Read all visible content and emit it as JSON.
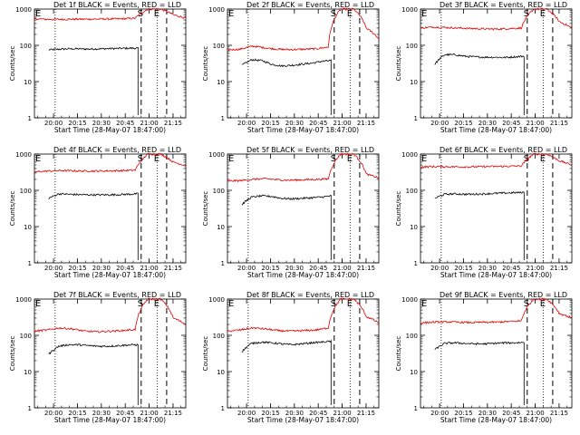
{
  "window": {
    "title": ""
  },
  "colors": {
    "events": "#000000",
    "lld": "#dd0000",
    "axis": "#000000",
    "marker": "#000000"
  },
  "common": {
    "xlabel": "Start Time (28-May-07 18:47:00)",
    "ylabel": "Counts/sec",
    "xticks": [
      "20:00",
      "20:15",
      "20:30",
      "20:45",
      "21:00",
      "21:15"
    ],
    "yticks": [
      "1",
      "10",
      "100",
      "1000"
    ],
    "markers": [
      "E",
      "S",
      "E"
    ]
  },
  "chart_data": [
    {
      "type": "line",
      "title": "Det 1f BLACK = Events, RED = LLD",
      "xlabel": "Start Time (28-May-07 18:47:00)",
      "ylabel": "Counts/sec",
      "yscale": "log",
      "ylim": [
        1,
        1000
      ],
      "xlim": [
        "19:48",
        "21:23"
      ],
      "vlines": {
        "dotted": [
          "20:01",
          "21:05"
        ],
        "dashed": [
          "20:55",
          "21:11"
        ]
      },
      "series": [
        {
          "name": "Events",
          "color": "#000000",
          "x_range": [
            "19:57",
            "20:53"
          ],
          "values": [
            75,
            78,
            80,
            80,
            79,
            80,
            81,
            82,
            83,
            84
          ]
        },
        {
          "name": "LLD",
          "color": "#dd0000",
          "x_range": [
            "19:48",
            "21:23"
          ],
          "values": [
            540,
            520,
            520,
            525,
            525,
            530,
            535,
            540,
            560,
            1000,
            1000,
            700,
            560
          ]
        }
      ]
    },
    {
      "type": "line",
      "title": "Det 2f BLACK = Events, RED = LLD",
      "xlabel": "Start Time (28-May-07 18:47:00)",
      "ylabel": "Counts/sec",
      "yscale": "log",
      "ylim": [
        1,
        1000
      ],
      "xlim": [
        "19:48",
        "21:23"
      ],
      "vlines": {
        "dotted": [
          "20:01",
          "21:05"
        ],
        "dashed": [
          "20:55",
          "21:11"
        ]
      },
      "series": [
        {
          "name": "Events",
          "color": "#000000",
          "x_range": [
            "19:57",
            "20:53"
          ],
          "values": [
            28,
            40,
            38,
            30,
            27,
            28,
            30,
            32,
            36,
            38
          ]
        },
        {
          "name": "LLD",
          "color": "#dd0000",
          "x_range": [
            "19:48",
            "21:23"
          ],
          "values": [
            75,
            78,
            95,
            85,
            78,
            76,
            78,
            80,
            90,
            1000,
            1000,
            300,
            150
          ]
        }
      ]
    },
    {
      "type": "line",
      "title": "Det 3f BLACK = Events, RED = LLD",
      "xlabel": "Start Time (28-May-07 18:47:00)",
      "ylabel": "Counts/sec",
      "yscale": "log",
      "ylim": [
        1,
        1000
      ],
      "xlim": [
        "19:48",
        "21:23"
      ],
      "vlines": {
        "dotted": [
          "20:01",
          "21:05"
        ],
        "dashed": [
          "20:55",
          "21:11"
        ]
      },
      "series": [
        {
          "name": "Events",
          "color": "#000000",
          "x_range": [
            "19:57",
            "20:53"
          ],
          "values": [
            30,
            55,
            55,
            50,
            48,
            47,
            47,
            46,
            48,
            50
          ]
        },
        {
          "name": "LLD",
          "color": "#dd0000",
          "x_range": [
            "19:48",
            "21:23"
          ],
          "values": [
            300,
            320,
            310,
            300,
            290,
            285,
            280,
            290,
            300,
            1000,
            1000,
            450,
            300
          ]
        }
      ]
    },
    {
      "type": "line",
      "title": "Det 4f BLACK = Events, RED = LLD",
      "xlabel": "Start Time (28-May-07 18:47:00)",
      "ylabel": "Counts/sec",
      "yscale": "log",
      "ylim": [
        1,
        1000
      ],
      "xlim": [
        "19:48",
        "21:23"
      ],
      "vlines": {
        "dotted": [
          "20:01",
          "21:05"
        ],
        "dashed": [
          "20:55",
          "21:11"
        ]
      },
      "series": [
        {
          "name": "Events",
          "color": "#000000",
          "x_range": [
            "19:57",
            "20:53"
          ],
          "values": [
            60,
            80,
            78,
            76,
            75,
            75,
            75,
            76,
            78,
            80
          ]
        },
        {
          "name": "LLD",
          "color": "#dd0000",
          "x_range": [
            "19:48",
            "21:23"
          ],
          "values": [
            320,
            340,
            350,
            345,
            340,
            340,
            345,
            350,
            360,
            1000,
            1000,
            600,
            480
          ]
        }
      ]
    },
    {
      "type": "line",
      "title": "Det 5f BLACK = Events, RED = LLD",
      "xlabel": "Start Time (28-May-07 18:47:00)",
      "ylabel": "Counts/sec",
      "yscale": "log",
      "ylim": [
        1,
        1000
      ],
      "xlim": [
        "19:48",
        "21:23"
      ],
      "vlines": {
        "dotted": [
          "20:01",
          "21:05"
        ],
        "dashed": [
          "20:55",
          "21:11"
        ]
      },
      "series": [
        {
          "name": "Events",
          "color": "#000000",
          "x_range": [
            "19:57",
            "20:53"
          ],
          "values": [
            40,
            65,
            70,
            68,
            60,
            58,
            60,
            62,
            65,
            70
          ]
        },
        {
          "name": "LLD",
          "color": "#dd0000",
          "x_range": [
            "19:48",
            "21:23"
          ],
          "values": [
            180,
            185,
            200,
            210,
            195,
            190,
            195,
            200,
            205,
            1000,
            1000,
            280,
            220
          ]
        }
      ]
    },
    {
      "type": "line",
      "title": "Det 6f BLACK = Events, RED = LLD",
      "xlabel": "Start Time (28-May-07 18:47:00)",
      "ylabel": "Counts/sec",
      "yscale": "log",
      "ylim": [
        1,
        1000
      ],
      "xlim": [
        "19:48",
        "21:23"
      ],
      "vlines": {
        "dotted": [
          "20:01",
          "21:05"
        ],
        "dashed": [
          "20:55",
          "21:11"
        ]
      },
      "series": [
        {
          "name": "Events",
          "color": "#000000",
          "x_range": [
            "19:57",
            "20:53"
          ],
          "values": [
            60,
            78,
            80,
            78,
            78,
            80,
            82,
            84,
            86,
            88
          ]
        },
        {
          "name": "LLD",
          "color": "#dd0000",
          "x_range": [
            "19:48",
            "21:23"
          ],
          "values": [
            440,
            450,
            450,
            445,
            445,
            450,
            455,
            460,
            470,
            1000,
            1000,
            650,
            500
          ]
        }
      ]
    },
    {
      "type": "line",
      "title": "Det 7f BLACK = Events, RED = LLD",
      "xlabel": "Start Time (28-May-07 18:47:00)",
      "ylabel": "Counts/sec",
      "yscale": "log",
      "ylim": [
        1,
        1000
      ],
      "xlim": [
        "19:48",
        "21:23"
      ],
      "vlines": {
        "dotted": [
          "20:01",
          "21:05"
        ],
        "dashed": [
          "20:55",
          "21:11"
        ]
      },
      "series": [
        {
          "name": "Events",
          "color": "#000000",
          "x_range": [
            "19:57",
            "20:53"
          ],
          "values": [
            30,
            50,
            55,
            55,
            52,
            50,
            50,
            52,
            54,
            55
          ]
        },
        {
          "name": "LLD",
          "color": "#dd0000",
          "x_range": [
            "19:48",
            "21:23"
          ],
          "values": [
            130,
            140,
            160,
            150,
            130,
            125,
            130,
            135,
            145,
            1000,
            1000,
            300,
            200
          ]
        }
      ]
    },
    {
      "type": "line",
      "title": "Det 8f BLACK = Events, RED = LLD",
      "xlabel": "Start Time (28-May-07 18:47:00)",
      "ylabel": "Counts/sec",
      "yscale": "log",
      "ylim": [
        1,
        1000
      ],
      "xlim": [
        "19:48",
        "21:23"
      ],
      "vlines": {
        "dotted": [
          "20:01",
          "21:05"
        ],
        "dashed": [
          "20:55",
          "21:11"
        ]
      },
      "series": [
        {
          "name": "Events",
          "color": "#000000",
          "x_range": [
            "19:57",
            "20:53"
          ],
          "values": [
            35,
            60,
            65,
            62,
            58,
            55,
            58,
            62,
            65,
            68
          ]
        },
        {
          "name": "LLD",
          "color": "#dd0000",
          "x_range": [
            "19:48",
            "21:23"
          ],
          "values": [
            130,
            140,
            160,
            150,
            135,
            130,
            135,
            140,
            160,
            1000,
            1000,
            330,
            220
          ]
        }
      ]
    },
    {
      "type": "line",
      "title": "Det 9f BLACK = Events, RED = LLD",
      "xlabel": "Start Time (28-May-07 18:47:00)",
      "ylabel": "Counts/sec",
      "yscale": "log",
      "ylim": [
        1,
        1000
      ],
      "xlim": [
        "19:48",
        "21:23"
      ],
      "vlines": {
        "dotted": [
          "20:01",
          "21:05"
        ],
        "dashed": [
          "20:55",
          "21:11"
        ]
      },
      "series": [
        {
          "name": "Events",
          "color": "#000000",
          "x_range": [
            "19:57",
            "20:53"
          ],
          "values": [
            40,
            60,
            62,
            60,
            58,
            58,
            60,
            62,
            62,
            64
          ]
        },
        {
          "name": "LLD",
          "color": "#dd0000",
          "x_range": [
            "19:48",
            "21:23"
          ],
          "values": [
            220,
            230,
            235,
            230,
            225,
            228,
            230,
            240,
            250,
            1000,
            1000,
            400,
            300
          ]
        }
      ]
    }
  ]
}
